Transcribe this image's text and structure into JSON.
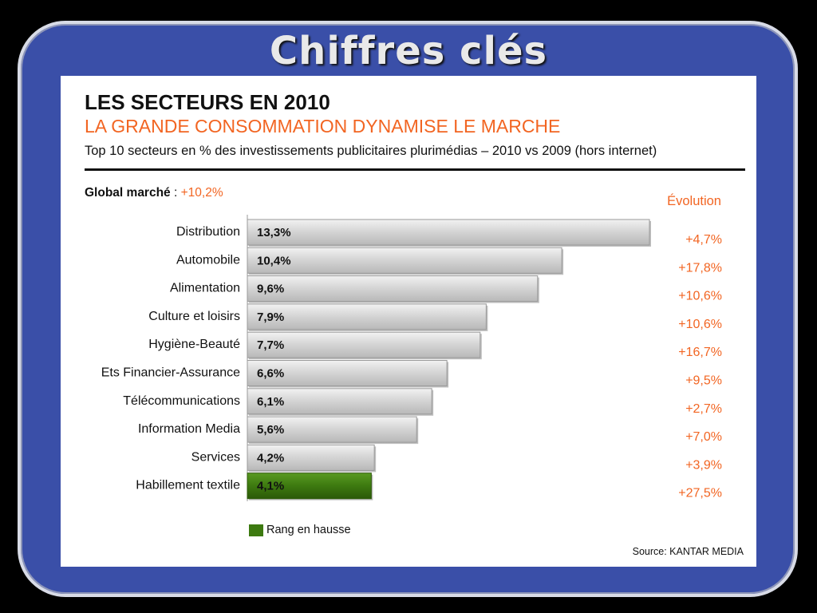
{
  "slide_title": "Chiffres clés",
  "heading": "LES SECTEURS EN 2010",
  "subheading": "LA GRANDE CONSOMMATION DYNAMISE LE MARCHE",
  "caption": "Top 10 secteurs en % des investissements publicitaires plurimédias – 2010 vs 2009 (hors internet)",
  "global": {
    "label": "Global marché",
    "separator": " : ",
    "value": "+10,2%"
  },
  "evolution_title": "Évolution",
  "legend": {
    "label": "Rang en hausse",
    "color": "#3d7a10"
  },
  "source": "Source: KANTAR MEDIA",
  "colors": {
    "accent": "#f26522",
    "bar": "#d4d4d4",
    "bar_highlight": "#3d7a10",
    "frame": "#3a4fa8"
  },
  "chart_data": {
    "type": "bar",
    "orientation": "horizontal",
    "categories": [
      "Distribution",
      "Automobile",
      "Alimentation",
      "Culture et loisirs",
      "Hygiène-Beauté",
      "Ets Financier-Assurance",
      "Télécommunications",
      "Information Media",
      "Services",
      "Habillement textile"
    ],
    "values": [
      13.3,
      10.4,
      9.6,
      7.9,
      7.7,
      6.6,
      6.1,
      5.6,
      4.2,
      4.1
    ],
    "value_labels": [
      "13,3%",
      "10,4%",
      "9,6%",
      "7,9%",
      "7,7%",
      "6,6%",
      "6,1%",
      "5,6%",
      "4,2%",
      "4,1%"
    ],
    "evolution": [
      "+4,7%",
      "+17,8%",
      "+10,6%",
      "+10,6%",
      "+16,7%",
      "+9,5%",
      "+2,7%",
      "+7,0%",
      "+3,9%",
      "+27,5%"
    ],
    "highlighted": [
      false,
      false,
      false,
      false,
      false,
      false,
      false,
      false,
      false,
      true
    ],
    "xlim": [
      0,
      13.3
    ],
    "grid": false
  }
}
